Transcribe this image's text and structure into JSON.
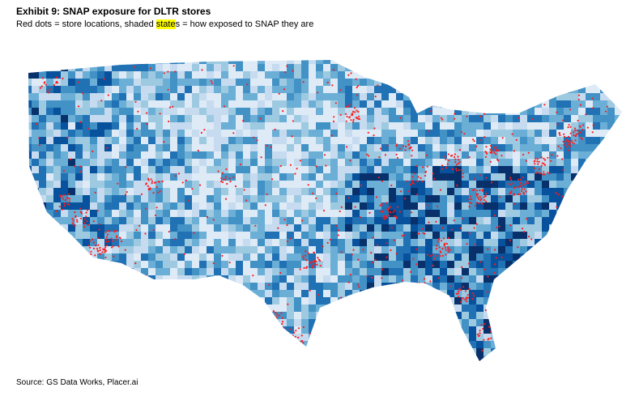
{
  "header": {
    "title": "Exhibit 9: SNAP exposure for DLTR stores",
    "subtitle": [
      "Red dots = store locations, shaded ",
      "state",
      "s = how exposed to SNAP they are"
    ]
  },
  "footer": {
    "source": "Source: GS Data Works, Placer.ai"
  }
}
